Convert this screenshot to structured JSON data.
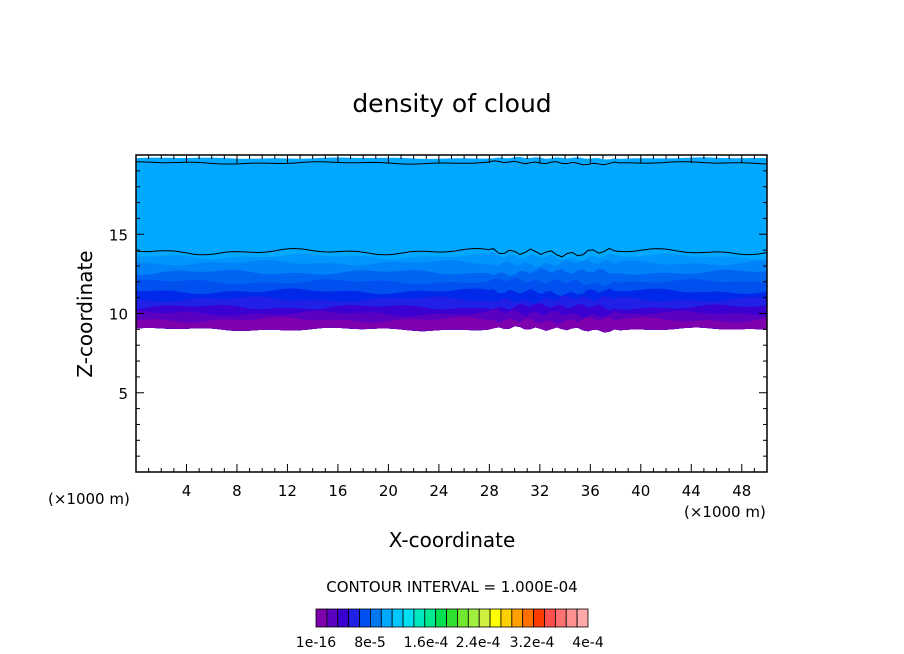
{
  "chart_data": {
    "type": "heatmap",
    "title": "density of cloud",
    "xlabel": "X-coordinate",
    "ylabel": "Z-coordinate",
    "x_unit_left": "(×1000 m)",
    "x_unit_right": "(×1000 m)",
    "xlim": [
      0,
      50
    ],
    "ylim": [
      0,
      20
    ],
    "xticks": [
      4,
      8,
      12,
      16,
      20,
      24,
      28,
      32,
      36,
      40,
      44,
      48
    ],
    "yticks": [
      5,
      10,
      15
    ],
    "contour_interval_text": "CONTOUR INTERVAL = 1.000E-04",
    "colorbar_labels": [
      "1e-16",
      "8e-5",
      "1.6e-4",
      "2.4e-4",
      "3.2e-4",
      "4e-4"
    ],
    "colorbar_colors": [
      "#7f00ad",
      "#5a00c0",
      "#3a00d2",
      "#2020e6",
      "#0050f0",
      "#0078f5",
      "#00a8ff",
      "#00c8ff",
      "#00e0f0",
      "#00e8c0",
      "#00e890",
      "#00e050",
      "#30e030",
      "#70e830",
      "#a0f040",
      "#d0f040",
      "#ffff00",
      "#ffd000",
      "#ffa000",
      "#ff7000",
      "#ff3c00",
      "#ff5050",
      "#ff7070",
      "#ff9090",
      "#ffa8a8"
    ],
    "bands": [
      {
        "z_top": 9.6,
        "color": "#7f00ad"
      },
      {
        "z_top": 10.0,
        "color": "#5a00c0"
      },
      {
        "z_top": 10.4,
        "color": "#3a00d2"
      },
      {
        "z_top": 10.9,
        "color": "#2020e6"
      },
      {
        "z_top": 11.4,
        "color": "#0028e8"
      },
      {
        "z_top": 12.0,
        "color": "#0050f0"
      },
      {
        "z_top": 12.6,
        "color": "#0064f2"
      },
      {
        "z_top": 13.2,
        "color": "#0082f8"
      },
      {
        "z_top": 13.6,
        "color": "#0096fc"
      },
      {
        "z_top": 19.8,
        "color": "#00a8ff"
      }
    ],
    "cloud_base_z": 9.0,
    "upper_contour_z": 13.9,
    "top_contour_z": 19.5
  }
}
